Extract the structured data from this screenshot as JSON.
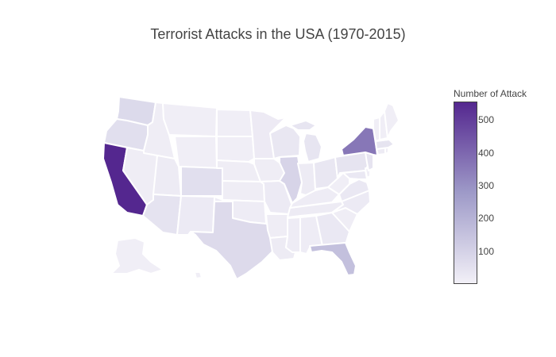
{
  "chart": {
    "title": "Terrorist Attacks in the USA (1970-2015)",
    "colorbar_title": "Number of Attack",
    "colorbar_ticks": [
      "500",
      "400",
      "300",
      "200",
      "100"
    ]
  },
  "colors": {
    "low": "#f2f0f7",
    "mid": "#9e9ac8",
    "high": "#54278f"
  },
  "chart_data": {
    "type": "choropleth",
    "scope": "usa",
    "colorscale": "Purples",
    "zmin": 0,
    "zmax": 556,
    "colorbar_tick_values": [
      500,
      400,
      300,
      200,
      100
    ],
    "states": [
      {
        "code": "CA",
        "value": 556
      },
      {
        "code": "NY",
        "value": 363
      },
      {
        "code": "FL",
        "value": 156
      },
      {
        "code": "IL",
        "value": 90
      },
      {
        "code": "WA",
        "value": 72
      },
      {
        "code": "TX",
        "value": 70
      },
      {
        "code": "OR",
        "value": 55
      },
      {
        "code": "CO",
        "value": 55
      },
      {
        "code": "AZ",
        "value": 42
      },
      {
        "code": "PA",
        "value": 40
      },
      {
        "code": "NJ",
        "value": 40
      },
      {
        "code": "MA",
        "value": 40
      },
      {
        "code": "MI",
        "value": 35
      },
      {
        "code": "WI",
        "value": 30
      },
      {
        "code": "OH",
        "value": 30
      },
      {
        "code": "GA",
        "value": 25
      },
      {
        "code": "VA",
        "value": 25
      },
      {
        "code": "MD",
        "value": 25
      },
      {
        "code": "NC",
        "value": 20
      },
      {
        "code": "MO",
        "value": 20
      },
      {
        "code": "NM",
        "value": 20
      },
      {
        "code": "MN",
        "value": 18
      },
      {
        "code": "IN",
        "value": 15
      },
      {
        "code": "TN",
        "value": 15
      },
      {
        "code": "LA",
        "value": 15
      },
      {
        "code": "UT",
        "value": 15
      },
      {
        "code": "CT",
        "value": 15
      },
      {
        "code": "AL",
        "value": 12
      },
      {
        "code": "KY",
        "value": 12
      },
      {
        "code": "OK",
        "value": 12
      },
      {
        "code": "MS",
        "value": 12
      },
      {
        "code": "NE",
        "value": 10
      },
      {
        "code": "KS",
        "value": 10
      },
      {
        "code": "IA",
        "value": 10
      },
      {
        "code": "ID",
        "value": 10
      },
      {
        "code": "NV",
        "value": 10
      },
      {
        "code": "SC",
        "value": 10
      },
      {
        "code": "AR",
        "value": 10
      },
      {
        "code": "WV",
        "value": 8
      },
      {
        "code": "MT",
        "value": 8
      },
      {
        "code": "ME",
        "value": 6
      },
      {
        "code": "NH",
        "value": 6
      },
      {
        "code": "VT",
        "value": 6
      },
      {
        "code": "RI",
        "value": 6
      },
      {
        "code": "DE",
        "value": 5
      },
      {
        "code": "ND",
        "value": 5
      },
      {
        "code": "SD",
        "value": 5
      },
      {
        "code": "WY",
        "value": 5
      },
      {
        "code": "AK",
        "value": 5
      },
      {
        "code": "HI",
        "value": 5
      }
    ]
  }
}
